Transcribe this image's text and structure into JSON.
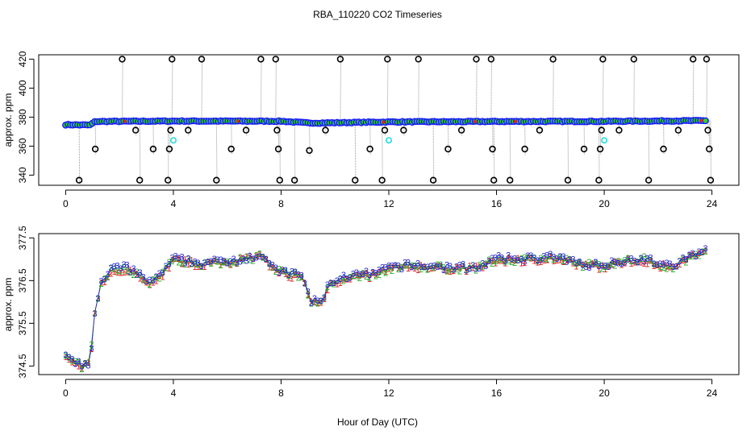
{
  "figure": {
    "title": "RBA_110220  CO2 Timeseries",
    "xlabel": "Hour of Day (UTC)"
  },
  "chart_data": [
    {
      "type": "scatter",
      "name": "top-panel",
      "xlabel": "",
      "ylabel": "approx. ppm",
      "xlim": [
        -1,
        25
      ],
      "ylim": [
        333,
        423
      ],
      "xticks": [
        0,
        4,
        8,
        12,
        16,
        20,
        24
      ],
      "yticks": [
        340,
        360,
        380,
        400,
        420
      ],
      "grid": false,
      "colors": {
        "main": "#1a1aff",
        "fill": "#33cc33",
        "outlier": "#000000",
        "cyan": "#22dddd",
        "line": "#999999",
        "red": "#dd2222"
      },
      "baseline": [
        [
          0.0,
          374.8
        ],
        [
          0.9,
          374.6
        ],
        [
          1.1,
          377.0
        ],
        [
          4.0,
          377.3
        ],
        [
          8.0,
          377.2
        ],
        [
          9.0,
          376.0
        ],
        [
          9.5,
          376.0
        ],
        [
          12.0,
          376.7
        ],
        [
          16.0,
          377.0
        ],
        [
          20.0,
          377.1
        ],
        [
          23.8,
          377.6
        ]
      ],
      "outliers": [
        {
          "x": 0.5,
          "y": 336.5
        },
        {
          "x": 1.1,
          "y": 358
        },
        {
          "x": 2.1,
          "y": 420
        },
        {
          "x": 2.6,
          "y": 371
        },
        {
          "x": 2.75,
          "y": 336.5
        },
        {
          "x": 3.25,
          "y": 358
        },
        {
          "x": 3.8,
          "y": 336.5
        },
        {
          "x": 3.85,
          "y": 358
        },
        {
          "x": 3.9,
          "y": 371
        },
        {
          "x": 3.95,
          "y": 420
        },
        {
          "x": 4.55,
          "y": 371
        },
        {
          "x": 5.05,
          "y": 420
        },
        {
          "x": 5.6,
          "y": 336.5
        },
        {
          "x": 6.15,
          "y": 358
        },
        {
          "x": 6.7,
          "y": 371
        },
        {
          "x": 7.25,
          "y": 420
        },
        {
          "x": 7.8,
          "y": 420
        },
        {
          "x": 7.85,
          "y": 371
        },
        {
          "x": 7.9,
          "y": 358
        },
        {
          "x": 7.95,
          "y": 336.5
        },
        {
          "x": 8.5,
          "y": 336.5
        },
        {
          "x": 9.05,
          "y": 357
        },
        {
          "x": 9.65,
          "y": 371
        },
        {
          "x": 10.2,
          "y": 420
        },
        {
          "x": 10.75,
          "y": 336.5
        },
        {
          "x": 11.3,
          "y": 358
        },
        {
          "x": 11.75,
          "y": 336.5
        },
        {
          "x": 11.85,
          "y": 371
        },
        {
          "x": 11.95,
          "y": 420
        },
        {
          "x": 12.55,
          "y": 371
        },
        {
          "x": 13.1,
          "y": 420
        },
        {
          "x": 13.65,
          "y": 336.5
        },
        {
          "x": 14.2,
          "y": 358
        },
        {
          "x": 14.7,
          "y": 371
        },
        {
          "x": 15.25,
          "y": 420
        },
        {
          "x": 15.8,
          "y": 420
        },
        {
          "x": 15.85,
          "y": 358
        },
        {
          "x": 15.9,
          "y": 336.5
        },
        {
          "x": 16.5,
          "y": 336.5
        },
        {
          "x": 17.05,
          "y": 358
        },
        {
          "x": 17.6,
          "y": 371
        },
        {
          "x": 18.1,
          "y": 420
        },
        {
          "x": 18.65,
          "y": 336.5
        },
        {
          "x": 19.25,
          "y": 358
        },
        {
          "x": 19.8,
          "y": 336.5
        },
        {
          "x": 19.85,
          "y": 358
        },
        {
          "x": 19.9,
          "y": 371
        },
        {
          "x": 19.95,
          "y": 420
        },
        {
          "x": 20.55,
          "y": 371
        },
        {
          "x": 21.1,
          "y": 420
        },
        {
          "x": 21.65,
          "y": 336.5
        },
        {
          "x": 22.2,
          "y": 358
        },
        {
          "x": 22.75,
          "y": 371
        },
        {
          "x": 23.3,
          "y": 420
        },
        {
          "x": 23.8,
          "y": 420
        },
        {
          "x": 23.85,
          "y": 371
        },
        {
          "x": 23.9,
          "y": 358
        },
        {
          "x": 23.95,
          "y": 336.5
        }
      ],
      "cyan_points": [
        {
          "x": 4.0,
          "y": 364
        },
        {
          "x": 12.0,
          "y": 364
        },
        {
          "x": 20.0,
          "y": 364
        }
      ]
    },
    {
      "type": "scatter",
      "name": "bottom-panel",
      "xlabel": "Hour of Day (UTC)",
      "ylabel": "approx. ppm",
      "xlim": [
        -1,
        25
      ],
      "ylim": [
        374.3,
        377.6
      ],
      "xticks": [
        0,
        4,
        8,
        12,
        16,
        20,
        24
      ],
      "yticks": [
        374.5,
        375.5,
        376.5,
        377.5
      ],
      "grid": false,
      "series": [
        {
          "name": "1",
          "color": "#dd2222"
        },
        {
          "name": "2",
          "color": "#22aa22"
        },
        {
          "name": "3",
          "color": "#2222cc"
        }
      ],
      "trend": [
        [
          0.0,
          374.75
        ],
        [
          0.3,
          374.55
        ],
        [
          0.6,
          374.5
        ],
        [
          0.9,
          374.55
        ],
        [
          1.05,
          375.6
        ],
        [
          1.3,
          376.4
        ],
        [
          1.7,
          376.75
        ],
        [
          2.2,
          376.8
        ],
        [
          2.6,
          376.7
        ],
        [
          3.0,
          376.45
        ],
        [
          3.5,
          376.6
        ],
        [
          4.0,
          377.0
        ],
        [
          5.0,
          376.9
        ],
        [
          6.0,
          376.95
        ],
        [
          7.0,
          377.05
        ],
        [
          7.3,
          377.1
        ],
        [
          7.6,
          376.8
        ],
        [
          8.0,
          376.7
        ],
        [
          8.8,
          376.6
        ],
        [
          9.1,
          376.0
        ],
        [
          9.5,
          376.0
        ],
        [
          9.8,
          376.45
        ],
        [
          10.5,
          376.6
        ],
        [
          11.5,
          376.65
        ],
        [
          12.0,
          376.8
        ],
        [
          13.0,
          376.85
        ],
        [
          14.0,
          376.8
        ],
        [
          15.0,
          376.8
        ],
        [
          15.5,
          376.85
        ],
        [
          16.0,
          377.0
        ],
        [
          17.0,
          377.0
        ],
        [
          18.0,
          377.05
        ],
        [
          19.0,
          376.9
        ],
        [
          19.7,
          376.85
        ],
        [
          20.0,
          376.85
        ],
        [
          20.5,
          376.95
        ],
        [
          21.5,
          377.0
        ],
        [
          22.5,
          376.8
        ],
        [
          23.0,
          377.0
        ],
        [
          23.8,
          377.25
        ]
      ]
    }
  ]
}
